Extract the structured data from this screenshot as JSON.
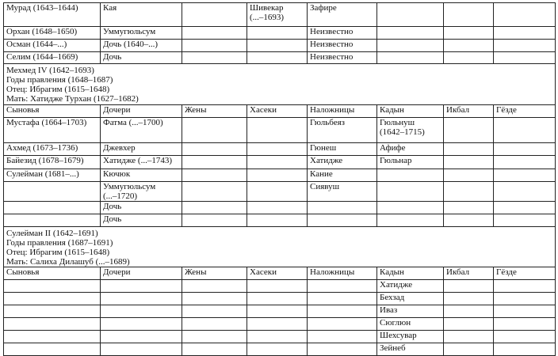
{
  "section1_rows": [
    [
      "Мурад (1643–1644)",
      "Кая",
      "",
      "Шивекар\n(...–1693)",
      "Зафире",
      "",
      "",
      ""
    ],
    [
      "Орхан (1648–1650)",
      "Уммугюльсум",
      "",
      "",
      "Неизвестно",
      "",
      "",
      ""
    ],
    [
      "Осман (1644–...)",
      "Дочь (1640–...)",
      "",
      "",
      "Неизвестно",
      "",
      "",
      ""
    ],
    [
      "Селим (1644–1669)",
      "Дочь",
      "",
      "",
      "Неизвестно",
      "",
      "",
      ""
    ]
  ],
  "mehmed": {
    "info": [
      "Мехмед IV (1642–1693)",
      "Годы правления (1648–1687)",
      "Отец: Ибрагим (1615–1648)",
      "Мать: Хатидже Турхан (1627–1682)"
    ],
    "headers": [
      "Сыновья",
      "Дочери",
      "Жены",
      "Хасеки",
      "Наложницы",
      "Кадын",
      "Икбал",
      "Гёзде"
    ],
    "rows": [
      [
        "Мустафа (1664–1703)",
        "Фатма (...–1700)",
        "",
        "",
        "Гюльбеяз",
        "Гюльнуш\n(1642–1715)",
        "",
        ""
      ],
      [
        "Ахмед (1673–1736)",
        "Джевхер",
        "",
        "",
        "Гюнеш",
        "Афифе",
        "",
        ""
      ],
      [
        "Байезид (1678–1679)",
        "Хатидже (...–1743)",
        "",
        "",
        "Хатидже",
        "Гюльнар",
        "",
        ""
      ],
      [
        "Сулейман (1681–...)",
        "Кючюк",
        "",
        "",
        "Кание",
        "",
        "",
        ""
      ],
      [
        "",
        "Уммугюльсум\n(...–1720)",
        "",
        "",
        "Сиявуш",
        "",
        "",
        ""
      ],
      [
        "",
        "Дочь",
        "",
        "",
        "",
        "",
        "",
        ""
      ],
      [
        "",
        "Дочь",
        "",
        "",
        "",
        "",
        "",
        ""
      ]
    ]
  },
  "suleiman": {
    "info": [
      "Сулейман II (1642–1691)",
      "Годы правления (1687–1691)",
      "Отец: Ибрагим (1615–1648)",
      "Мать: Салиха Дилашуб (...–1689)"
    ],
    "headers": [
      "Сыновья",
      "Дочери",
      "Жены",
      "Хасеки",
      "Наложницы",
      "Кадын",
      "Икбал",
      "Гёзде"
    ],
    "rows": [
      [
        "",
        "",
        "",
        "",
        "",
        "Хатидже",
        "",
        ""
      ],
      [
        "",
        "",
        "",
        "",
        "",
        "Бехзад",
        "",
        ""
      ],
      [
        "",
        "",
        "",
        "",
        "",
        "Иваз",
        "",
        ""
      ],
      [
        "",
        "",
        "",
        "",
        "",
        "Сюглюн",
        "",
        ""
      ],
      [
        "",
        "",
        "",
        "",
        "",
        "Шехсувар",
        "",
        ""
      ],
      [
        "",
        "",
        "",
        "",
        "",
        "Зейнеб",
        "",
        ""
      ]
    ]
  }
}
